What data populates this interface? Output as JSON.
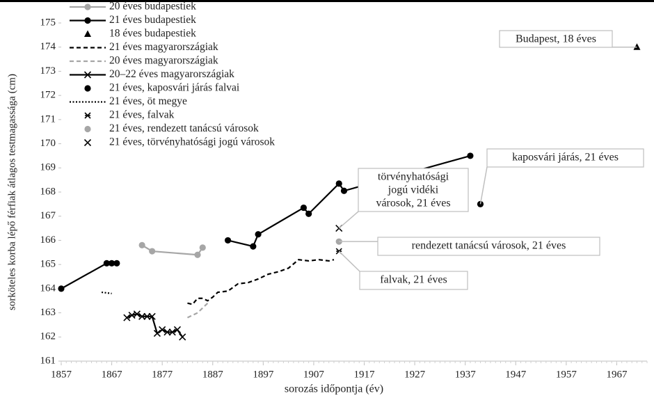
{
  "chart_data": {
    "type": "line",
    "x_label": "sorozás időpontja (év)",
    "y_label": "sorköteles korba lépő férfiak átlagos testmagassága (cm)",
    "xlim": [
      1857,
      1973
    ],
    "ylim": [
      161,
      175
    ],
    "xticks": [
      1857,
      1867,
      1877,
      1887,
      1897,
      1907,
      1917,
      1927,
      1937,
      1947,
      1957,
      1967
    ],
    "yticks": [
      161,
      162,
      163,
      164,
      165,
      166,
      167,
      168,
      169,
      170,
      171,
      172,
      173,
      174,
      175
    ],
    "legend": "top-left",
    "series": [
      {
        "name": "20 éves budapestiek",
        "color": "#a6a6a6",
        "line": "solid",
        "marker": "circle",
        "x": [
          1873,
          1875,
          1884,
          1885
        ],
        "values": [
          165.8,
          165.55,
          165.4,
          165.7
        ]
      },
      {
        "name": "21 éves budapestiek",
        "color": "#000000",
        "line": "solid",
        "marker": "circle",
        "x": [
          1857,
          1866,
          1867,
          1868,
          null,
          1890,
          1895,
          1896,
          1905,
          1906,
          1912,
          1913,
          1938
        ],
        "values": [
          164.0,
          165.05,
          165.05,
          165.05,
          null,
          166.0,
          165.75,
          166.25,
          167.35,
          167.1,
          168.35,
          168.05,
          169.5
        ]
      },
      {
        "name": "18 éves budapestiek",
        "color": "#000000",
        "line": "none",
        "marker": "triangle",
        "x": [
          1971
        ],
        "values": [
          174.0
        ]
      },
      {
        "name": "21 éves magyarországiak",
        "color": "#000000",
        "line": "dashed",
        "marker": "none",
        "x": [
          1882,
          1883,
          1884,
          1885,
          1886,
          1887,
          1888,
          1890,
          1892,
          1894,
          1896,
          1898,
          1900,
          1902,
          1904,
          1906,
          1908,
          1910,
          1911
        ],
        "values": [
          163.4,
          163.35,
          163.6,
          163.6,
          163.5,
          163.65,
          163.85,
          163.9,
          164.2,
          164.25,
          164.4,
          164.6,
          164.7,
          164.85,
          165.2,
          165.15,
          165.2,
          165.15,
          165.2
        ]
      },
      {
        "name": "20 éves magyarországiak",
        "color": "#a6a6a6",
        "line": "dashed",
        "marker": "none",
        "x": [
          1882,
          1883,
          1884,
          1885,
          1886
        ],
        "values": [
          162.8,
          162.9,
          163.0,
          163.2,
          163.4
        ]
      },
      {
        "name": "20–22 éves magyarországiak",
        "color": "#000000",
        "line": "solid",
        "marker": "x",
        "x": [
          1870,
          1871,
          1872,
          1873,
          1874,
          1875,
          1876,
          1877,
          1878,
          1879,
          1880,
          1881
        ],
        "values": [
          162.8,
          162.9,
          162.95,
          162.85,
          162.85,
          162.85,
          162.15,
          162.3,
          162.2,
          162.2,
          162.3,
          162.0
        ]
      },
      {
        "name": "21 éves, kaposvári járás falvai",
        "color": "#000000",
        "line": "none",
        "marker": "circle",
        "x": [
          1940
        ],
        "values": [
          167.5
        ]
      },
      {
        "name": "21 éves, öt megye",
        "color": "#000000",
        "line": "dotted",
        "marker": "none",
        "x": [
          1865,
          1867
        ],
        "values": [
          163.85,
          163.8
        ]
      },
      {
        "name": "21 éves, falvak",
        "color": "#000000",
        "line": "none",
        "marker": "star",
        "x": [
          1912
        ],
        "values": [
          165.55
        ]
      },
      {
        "name": "21 éves, rendezett tanácsú városok",
        "color": "#a6a6a6",
        "line": "none",
        "marker": "circle",
        "x": [
          1912
        ],
        "values": [
          165.95
        ]
      },
      {
        "name": "21 éves, törvényhatósági jogú városok",
        "color": "#000000",
        "line": "none",
        "marker": "x",
        "x": [
          1912
        ],
        "values": [
          166.5
        ]
      }
    ],
    "annotations": [
      {
        "lines": [
          "Budapest, 18 éves"
        ]
      },
      {
        "lines": [
          "kaposvári járás, 21 éves"
        ]
      },
      {
        "lines": [
          "törvényhatósági",
          "jogú vidéki",
          "városok, 21 éves"
        ]
      },
      {
        "lines": [
          "rendezett tanácsú városok, 21 éves"
        ]
      },
      {
        "lines": [
          "falvak, 21 éves"
        ]
      }
    ]
  }
}
